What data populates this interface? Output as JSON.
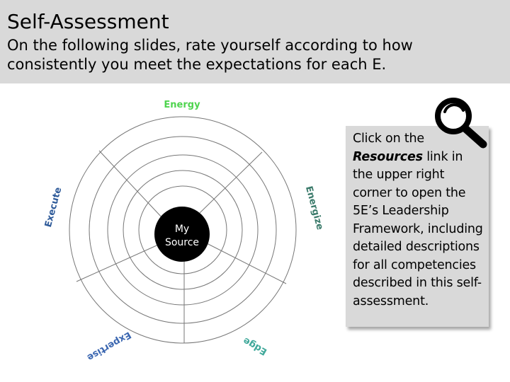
{
  "header": {
    "title": "Self-Assessment",
    "subtitle": "On the following slides, rate yourself according to how consistently you meet the expectations for each E."
  },
  "wheel": {
    "center_label_line1": "My",
    "center_label_line2": "Source",
    "segments": [
      {
        "label": "Energy",
        "color": "#4fd44f"
      },
      {
        "label": "Energize",
        "color": "#3a7a6a"
      },
      {
        "label": "Edge",
        "color": "#3fa89a"
      },
      {
        "label": "Expertise",
        "color": "#3a66b0"
      },
      {
        "label": "Execute",
        "color": "#2e5a99"
      }
    ],
    "ring_count": 5
  },
  "info_box": {
    "text_before": "Click on the ",
    "emphasis": "Resources",
    "text_after": " link in the upper right corner to open the 5E’s Leadership Framework, including detailed descriptions for all competencies described in this self-assessment."
  },
  "icons": {
    "magnifier": "magnifying-glass-icon"
  }
}
